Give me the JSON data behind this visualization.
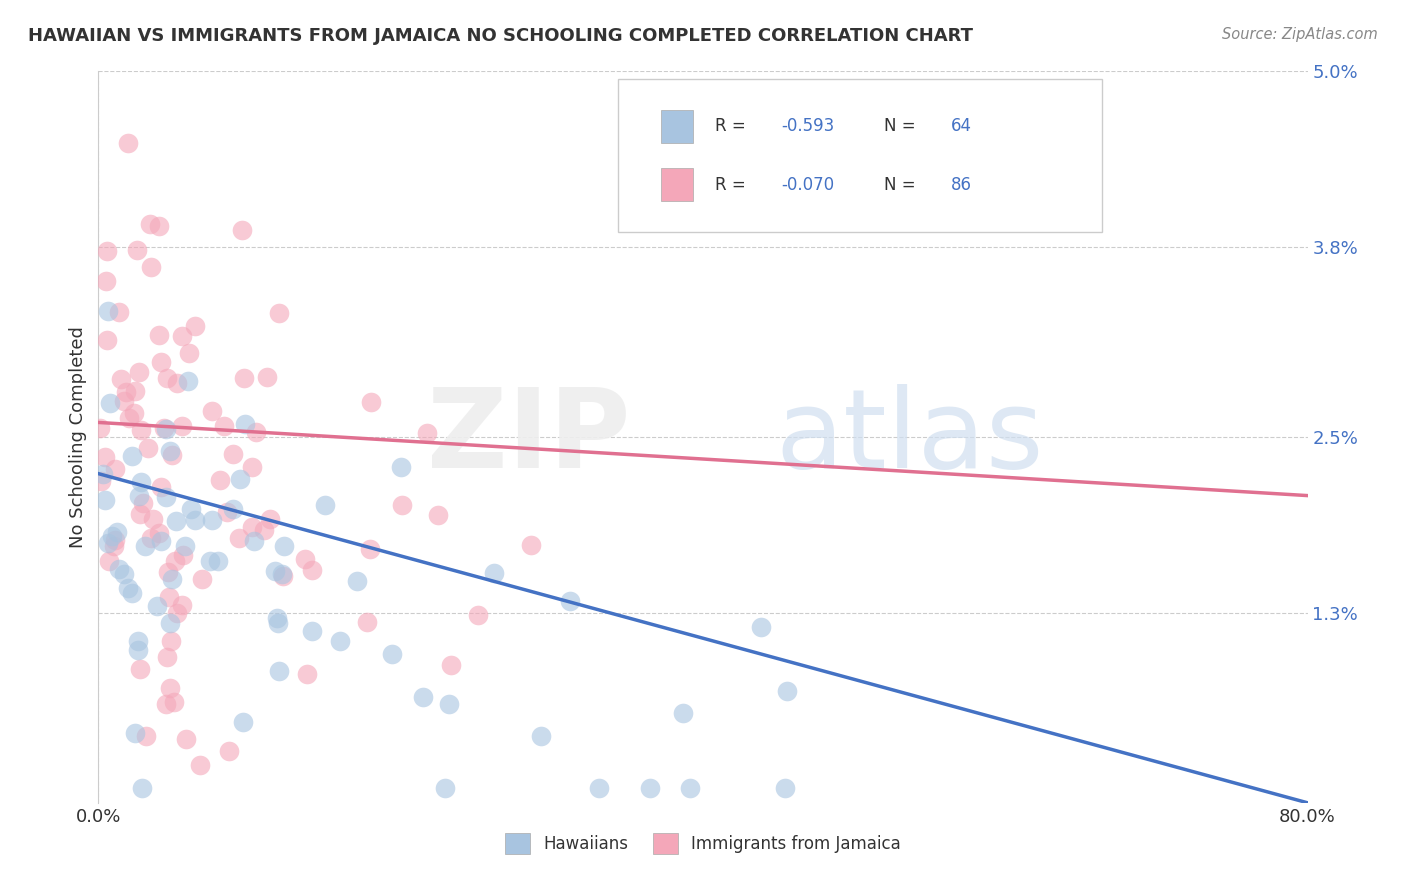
{
  "title": "HAWAIIAN VS IMMIGRANTS FROM JAMAICA NO SCHOOLING COMPLETED CORRELATION CHART",
  "source_text": "Source: ZipAtlas.com",
  "ylabel": "No Schooling Completed",
  "x_min": 0.0,
  "x_max": 0.8,
  "y_min": 0.0,
  "y_max": 0.05,
  "x_tick_labels": [
    "0.0%",
    "80.0%"
  ],
  "y_ticks": [
    0.013,
    0.025,
    0.038,
    0.05
  ],
  "y_tick_labels": [
    "1.3%",
    "2.5%",
    "3.8%",
    "5.0%"
  ],
  "hawaiian_color": "#a8c4e0",
  "jamaican_color": "#f4a7b9",
  "hawaiian_R": -0.593,
  "hawaiian_N": 64,
  "jamaican_R": -0.07,
  "jamaican_N": 86,
  "trend_blue": "#4472c4",
  "trend_pink": "#e07090",
  "legend_label_1": "Hawaiians",
  "legend_label_2": "Immigrants from Jamaica",
  "background_color": "#ffffff",
  "grid_color": "#cccccc",
  "blue_trend_x0": 0.0,
  "blue_trend_y0": 0.0225,
  "blue_trend_x1": 0.8,
  "blue_trend_y1": 0.0,
  "pink_trend_x0": 0.0,
  "pink_trend_y0": 0.026,
  "pink_trend_x1": 0.8,
  "pink_trend_y1": 0.021
}
